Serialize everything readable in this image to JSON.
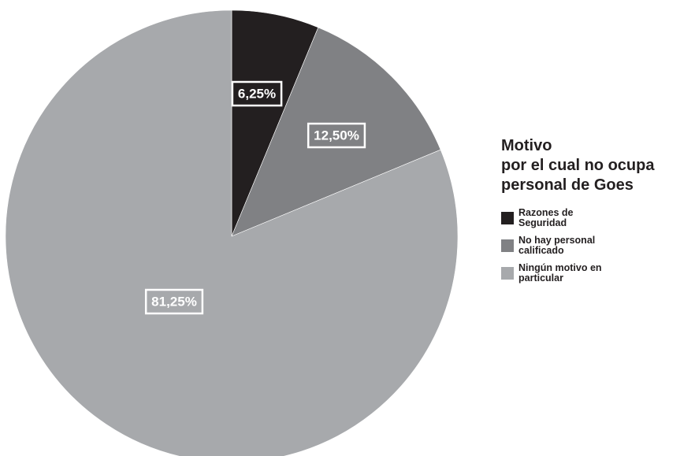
{
  "chart_data": {
    "type": "pie",
    "title": "Motivo por el cual no ocupa personal de Goes",
    "title_lines": [
      "Motivo",
      "por el cual no ocupa",
      "personal de Goes"
    ],
    "slices": [
      {
        "label": "Razones de Seguridad",
        "legend_lines": [
          "Razones de",
          "Seguridad"
        ],
        "value": 6.25,
        "value_label": "6,25%",
        "color": "#231f20"
      },
      {
        "label": "No hay personal calificado",
        "legend_lines": [
          "No hay personal",
          "calificado"
        ],
        "value": 12.5,
        "value_label": "12,50%",
        "color": "#808184"
      },
      {
        "label": "Ningún motivo en particular",
        "legend_lines": [
          "Ningún motivo en",
          "particular"
        ],
        "value": 81.25,
        "value_label": "81,25%",
        "color": "#a7a9ac"
      }
    ],
    "start_angle_deg": 0,
    "direction": "clockwise",
    "legend_position": "right"
  }
}
